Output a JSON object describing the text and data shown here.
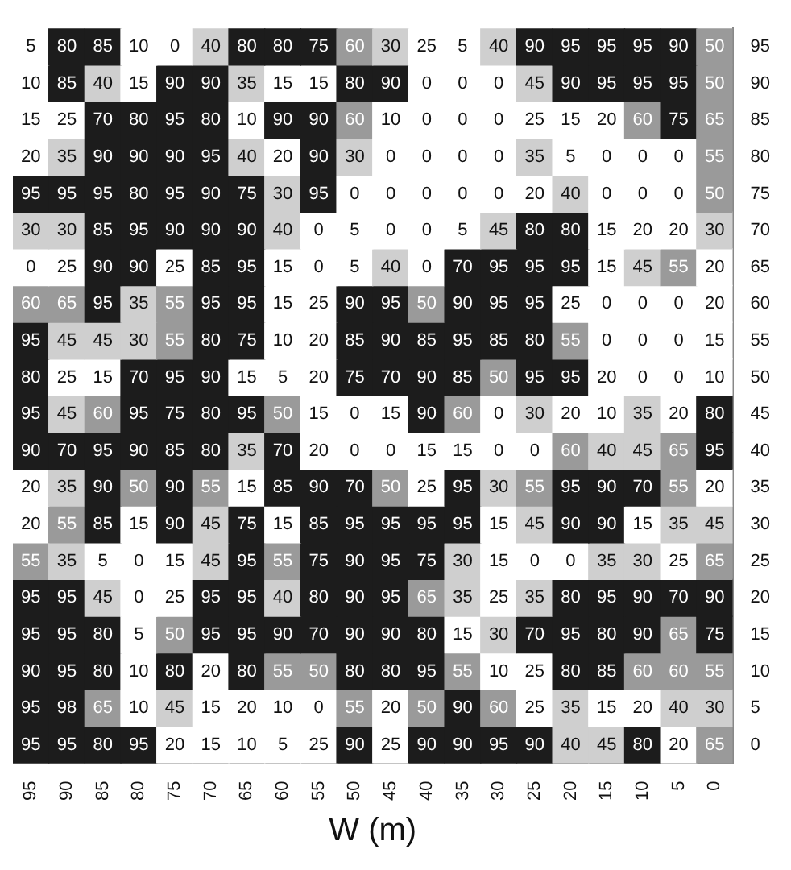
{
  "chart_data": {
    "type": "heatmap",
    "xlabel": "W (m)",
    "categories": [
      "95",
      "90",
      "85",
      "80",
      "75",
      "70",
      "65",
      "60",
      "55",
      "50",
      "45",
      "40",
      "35",
      "30",
      "25",
      "20",
      "15",
      "10",
      "5",
      "0"
    ],
    "y_categories": [
      "95",
      "90",
      "85",
      "80",
      "75",
      "70",
      "65",
      "60",
      "55",
      "50",
      "45",
      "40",
      "35",
      "30",
      "25",
      "20",
      "15",
      "10",
      "5",
      "0"
    ],
    "cells": [
      [
        5,
        80,
        85,
        10,
        0,
        40,
        80,
        80,
        75,
        60,
        30,
        25,
        5,
        40,
        90,
        95,
        95,
        95,
        90,
        50
      ],
      [
        10,
        85,
        40,
        15,
        90,
        90,
        35,
        15,
        15,
        80,
        90,
        0,
        0,
        0,
        45,
        90,
        95,
        95,
        95,
        50
      ],
      [
        15,
        25,
        70,
        80,
        95,
        80,
        10,
        90,
        90,
        60,
        10,
        0,
        0,
        0,
        25,
        15,
        20,
        60,
        75,
        65
      ],
      [
        20,
        35,
        90,
        90,
        90,
        95,
        40,
        20,
        90,
        30,
        0,
        0,
        0,
        0,
        35,
        5,
        0,
        0,
        0,
        55
      ],
      [
        95,
        95,
        95,
        80,
        95,
        90,
        75,
        30,
        95,
        0,
        0,
        0,
        0,
        0,
        20,
        40,
        0,
        0,
        0,
        50
      ],
      [
        30,
        30,
        85,
        95,
        90,
        90,
        90,
        40,
        0,
        5,
        0,
        0,
        5,
        45,
        80,
        80,
        15,
        20,
        20,
        30
      ],
      [
        0,
        25,
        90,
        90,
        25,
        85,
        95,
        15,
        0,
        5,
        40,
        0,
        70,
        95,
        95,
        95,
        15,
        45,
        55,
        20
      ],
      [
        60,
        65,
        95,
        35,
        55,
        95,
        95,
        15,
        25,
        90,
        95,
        50,
        90,
        95,
        95,
        25,
        0,
        0,
        0,
        20
      ],
      [
        95,
        45,
        45,
        30,
        55,
        80,
        75,
        10,
        20,
        85,
        90,
        85,
        95,
        85,
        80,
        55,
        0,
        0,
        0,
        15
      ],
      [
        80,
        25,
        15,
        70,
        95,
        90,
        15,
        5,
        20,
        75,
        70,
        90,
        85,
        50,
        95,
        95,
        20,
        0,
        0,
        10
      ],
      [
        95,
        45,
        60,
        95,
        75,
        80,
        95,
        50,
        15,
        0,
        15,
        90,
        60,
        0,
        30,
        20,
        10,
        35,
        20,
        80
      ],
      [
        90,
        70,
        95,
        90,
        85,
        80,
        35,
        70,
        20,
        0,
        0,
        15,
        15,
        0,
        0,
        60,
        40,
        45,
        65,
        95
      ],
      [
        20,
        35,
        90,
        50,
        90,
        55,
        15,
        85,
        90,
        70,
        50,
        25,
        95,
        30,
        55,
        95,
        90,
        70,
        55,
        20
      ],
      [
        20,
        55,
        85,
        15,
        90,
        45,
        75,
        15,
        85,
        95,
        95,
        95,
        95,
        15,
        45,
        90,
        90,
        15,
        35,
        45
      ],
      [
        55,
        35,
        5,
        0,
        15,
        45,
        95,
        55,
        75,
        90,
        95,
        75,
        30,
        15,
        0,
        0,
        35,
        30,
        25,
        65
      ],
      [
        95,
        95,
        45,
        0,
        25,
        95,
        95,
        40,
        80,
        90,
        95,
        65,
        35,
        25,
        35,
        80,
        95,
        90,
        70,
        90
      ],
      [
        95,
        95,
        80,
        5,
        50,
        95,
        95,
        90,
        70,
        90,
        90,
        80,
        15,
        30,
        70,
        95,
        80,
        90,
        65,
        75
      ],
      [
        90,
        95,
        80,
        10,
        80,
        20,
        80,
        55,
        50,
        80,
        80,
        95,
        55,
        10,
        25,
        80,
        85,
        60,
        60,
        55
      ],
      [
        95,
        98,
        65,
        10,
        45,
        15,
        20,
        10,
        0,
        55,
        20,
        50,
        90,
        60,
        25,
        35,
        15,
        20,
        40,
        30
      ],
      [
        95,
        95,
        80,
        95,
        20,
        15,
        10,
        5,
        25,
        90,
        25,
        90,
        90,
        95,
        90,
        40,
        45,
        80,
        20,
        65
      ]
    ],
    "data_labels": true
  }
}
